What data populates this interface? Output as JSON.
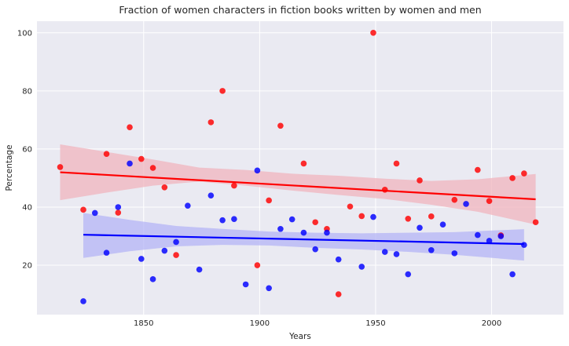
{
  "chart_data": {
    "type": "scatter",
    "title": "Fraction of women characters in fiction books written by women and men",
    "xlabel": "Years",
    "ylabel": "Percentage",
    "xlim": [
      1804,
      2031
    ],
    "ylim": [
      3,
      104
    ],
    "grid": true,
    "legend": "none",
    "x_ticks": [
      1850,
      1900,
      1950,
      2000
    ],
    "y_ticks": [
      20,
      40,
      60,
      80,
      100
    ],
    "colors": {
      "background": "#eaeaf2",
      "grid": "#ffffff",
      "red": "#ff0000",
      "blue": "#0000ff",
      "red_band": "#f0b4be",
      "blue_band": "#b4b4f5"
    },
    "series": [
      {
        "color": "red",
        "points": [
          [
            1814,
            53.8
          ],
          [
            1824,
            39.1
          ],
          [
            1834,
            58.3
          ],
          [
            1839,
            38.1
          ],
          [
            1844,
            67.5
          ],
          [
            1849,
            56.6
          ],
          [
            1854,
            53.5
          ],
          [
            1859,
            46.8
          ],
          [
            1864,
            23.5
          ],
          [
            1879,
            69.2
          ],
          [
            1884,
            80.0
          ],
          [
            1889,
            47.4
          ],
          [
            1899,
            20.0
          ],
          [
            1904,
            42.3
          ],
          [
            1909,
            68.0
          ],
          [
            1919,
            55.0
          ],
          [
            1924,
            34.8
          ],
          [
            1929,
            32.5
          ],
          [
            1934,
            10.0
          ],
          [
            1939,
            40.2
          ],
          [
            1944,
            36.9
          ],
          [
            1949,
            100.0
          ],
          [
            1954,
            46.0
          ],
          [
            1959,
            55.0
          ],
          [
            1964,
            36.0
          ],
          [
            1969,
            49.2
          ],
          [
            1974,
            36.8
          ],
          [
            1984,
            42.5
          ],
          [
            1994,
            52.8
          ],
          [
            1999,
            42.1
          ],
          [
            2004,
            30.3
          ],
          [
            2009,
            50.0
          ],
          [
            2014,
            51.6
          ],
          [
            2019,
            34.8
          ]
        ],
        "regression": [
          [
            1814,
            52.0
          ],
          [
            2019,
            42.7
          ]
        ],
        "ci_band": [
          [
            1814,
            42.4,
            61.6
          ],
          [
            1834,
            45.0,
            59.0
          ],
          [
            1854,
            47.4,
            56.4
          ],
          [
            1874,
            48.8,
            53.6
          ],
          [
            1894,
            47.4,
            52.8
          ],
          [
            1914,
            45.7,
            51.5
          ],
          [
            1934,
            44.2,
            50.8
          ],
          [
            1954,
            42.8,
            49.8
          ],
          [
            1974,
            40.8,
            49.0
          ],
          [
            1994,
            38.4,
            49.6
          ],
          [
            2019,
            34.0,
            51.4
          ]
        ]
      },
      {
        "color": "blue",
        "points": [
          [
            1824,
            7.6
          ],
          [
            1829,
            38.0
          ],
          [
            1834,
            24.3
          ],
          [
            1839,
            40.0
          ],
          [
            1844,
            55.0
          ],
          [
            1849,
            22.2
          ],
          [
            1854,
            15.2
          ],
          [
            1859,
            25.0
          ],
          [
            1864,
            28.0
          ],
          [
            1869,
            40.5
          ],
          [
            1874,
            18.5
          ],
          [
            1879,
            44.0
          ],
          [
            1884,
            35.5
          ],
          [
            1889,
            35.9
          ],
          [
            1894,
            13.4
          ],
          [
            1899,
            52.6
          ],
          [
            1904,
            12.1
          ],
          [
            1909,
            32.5
          ],
          [
            1914,
            35.8
          ],
          [
            1919,
            31.2
          ],
          [
            1924,
            25.5
          ],
          [
            1929,
            31.2
          ],
          [
            1934,
            22.0
          ],
          [
            1944,
            19.5
          ],
          [
            1949,
            36.6
          ],
          [
            1954,
            24.6
          ],
          [
            1959,
            23.8
          ],
          [
            1964,
            16.9
          ],
          [
            1969,
            32.9
          ],
          [
            1974,
            25.2
          ],
          [
            1979,
            34.0
          ],
          [
            1984,
            24.1
          ],
          [
            1989,
            41.1
          ],
          [
            1994,
            30.4
          ],
          [
            1999,
            28.4
          ],
          [
            2004,
            30.0
          ],
          [
            2009,
            16.9
          ],
          [
            2014,
            27.0
          ]
        ],
        "regression": [
          [
            1824,
            30.5
          ],
          [
            2014,
            27.3
          ]
        ],
        "ci_band": [
          [
            1824,
            22.5,
            38.0
          ],
          [
            1844,
            24.8,
            35.6
          ],
          [
            1864,
            26.5,
            33.5
          ],
          [
            1884,
            27.0,
            32.5
          ],
          [
            1904,
            26.8,
            31.6
          ],
          [
            1924,
            26.0,
            31.2
          ],
          [
            1944,
            25.4,
            31.0
          ],
          [
            1964,
            24.6,
            31.2
          ],
          [
            1984,
            23.6,
            31.4
          ],
          [
            2014,
            21.6,
            32.4
          ]
        ]
      }
    ]
  }
}
